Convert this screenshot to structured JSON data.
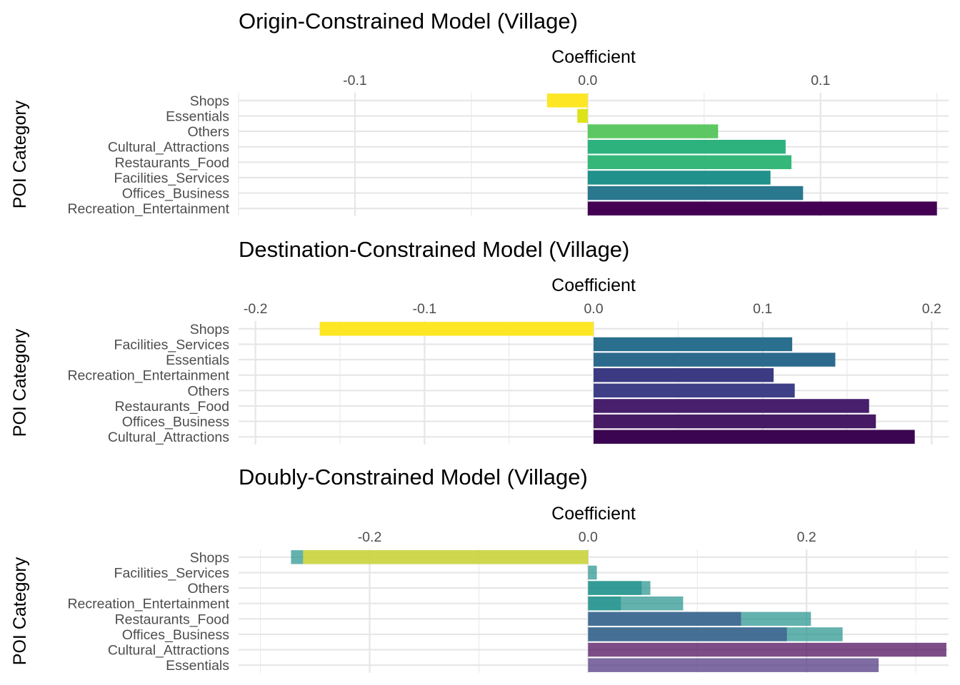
{
  "chart_data": [
    {
      "type": "bar",
      "orientation": "horizontal",
      "title": "Origin-Constrained Model (Village)",
      "xlabel": "Coefficient",
      "ylabel": "POI Category",
      "xaxis_position": "top",
      "xlim": [
        -0.15,
        0.155
      ],
      "xticks": [
        -0.1,
        0.0,
        0.1
      ],
      "xtick_labels": [
        "-0.1",
        "0.0",
        "0.1"
      ],
      "grid": true,
      "categories": [
        "Shops",
        "Essentials",
        "Others",
        "Cultural_Attractions",
        "Restaurants_Food",
        "Facilities_Services",
        "Offices_Business",
        "Recreation_Entertainment"
      ],
      "values": [
        -0.0175,
        -0.0045,
        0.056,
        0.085,
        0.0875,
        0.0785,
        0.0925,
        0.15
      ],
      "colors": [
        "#FDE725",
        "#DDE318",
        "#5DC863",
        "#2DB27D",
        "#35B779",
        "#21918C",
        "#2A788E",
        "#440154"
      ]
    },
    {
      "type": "bar",
      "orientation": "horizontal",
      "title": "Destination-Constrained Model (Village)",
      "xlabel": "Coefficient",
      "ylabel": "POI Category",
      "xaxis_position": "top",
      "xlim": [
        -0.21,
        0.21
      ],
      "xticks": [
        -0.2,
        -0.1,
        0.0,
        0.1,
        0.2
      ],
      "xtick_labels": [
        "-0.2",
        "-0.1",
        "0.0",
        "0.1",
        "0.2"
      ],
      "grid": true,
      "categories": [
        "Shops",
        "Facilities_Services",
        "Essentials",
        "Recreation_Entertainment",
        "Others",
        "Restaurants_Food",
        "Offices_Business",
        "Cultural_Attractions"
      ],
      "values": [
        -0.162,
        0.1175,
        0.143,
        0.1065,
        0.119,
        0.163,
        0.167,
        0.19
      ],
      "colors": [
        "#FDE725",
        "#2A6F8E",
        "#2C6A8D",
        "#3B3A82",
        "#3F3F87",
        "#471F6D",
        "#461A64",
        "#3B0551"
      ]
    },
    {
      "type": "bar",
      "orientation": "horizontal",
      "title": "Doubly-Constrained Model (Village)",
      "xlabel": "Coefficient",
      "ylabel": "POI Category",
      "xaxis_position": "top",
      "xlim": [
        -0.32,
        0.33
      ],
      "xticks": [
        -0.2,
        0.0,
        0.2
      ],
      "xtick_labels": [
        "-0.2",
        "0.0",
        "0.2"
      ],
      "grid": true,
      "overlay_opacity": 0.7,
      "categories": [
        "Shops",
        "Facilities_Services",
        "Others",
        "Recreation_Entertainment",
        "Restaurants_Food",
        "Offices_Business",
        "Cultural_Attractions",
        "Essentials"
      ],
      "series": [
        {
          "values": [
            -0.272,
            0.008,
            0.057,
            0.087,
            0.204,
            0.233,
            0.0,
            0.0
          ],
          "color": "#21918C"
        },
        {
          "values": [
            -0.261,
            0.0,
            0.049,
            0.03,
            0.14,
            0.182,
            0.328,
            0.266
          ],
          "colors": [
            "#FDE725",
            "#FDE725",
            "#21918C",
            "#21918C",
            "#3B528B",
            "#3B528B",
            "#440154",
            "#472D7B"
          ]
        }
      ]
    }
  ]
}
